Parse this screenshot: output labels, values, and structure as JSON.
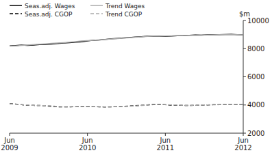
{
  "chart_data": {
    "type": "line",
    "ylabel": "$m",
    "categories": [
      "Jun\n2009",
      null,
      null,
      null,
      null,
      null,
      null,
      null,
      null,
      null,
      null,
      null,
      null,
      "Jun\n2010",
      null,
      null,
      null,
      null,
      null,
      null,
      null,
      null,
      null,
      null,
      null,
      null,
      "Jun\n2011",
      null,
      null,
      null,
      null,
      null,
      null,
      null,
      null,
      null,
      null,
      null,
      null,
      "Jun\n2012"
    ],
    "series": [
      {
        "name": "Seas.adj. Wages",
        "color": "#000000",
        "line_style": "solid",
        "values": [
          8200,
          8220,
          8250,
          8230,
          8260,
          8290,
          8300,
          8330,
          8360,
          8400,
          8430,
          8460,
          8490,
          8550,
          8600,
          8620,
          8650,
          8700,
          8730,
          8760,
          8790,
          8820,
          8850,
          8880,
          8870,
          8890,
          8870,
          8900,
          8920,
          8930,
          8950,
          8970,
          8960,
          8980,
          8990,
          9000,
          9010,
          9020,
          9000,
          8980
        ]
      },
      {
        "name": "Trend Wages",
        "color": "#aaaaaa",
        "line_style": "solid",
        "values": [
          8180,
          8200,
          8230,
          8260,
          8290,
          8310,
          8340,
          8370,
          8400,
          8430,
          8460,
          8500,
          8540,
          8570,
          8600,
          8630,
          8660,
          8690,
          8720,
          8750,
          8780,
          8810,
          8840,
          8870,
          8880,
          8890,
          8900,
          8910,
          8920,
          8930,
          8940,
          8950,
          8960,
          8970,
          8980,
          8990,
          9000,
          9000,
          8990,
          8980
        ]
      },
      {
        "name": "Seas.adj. CGOP",
        "color": "#000000",
        "line_style": "dashed",
        "values": [
          4100,
          4060,
          4020,
          3980,
          3970,
          3960,
          3950,
          3900,
          3870,
          3860,
          3870,
          3880,
          3890,
          3900,
          3880,
          3870,
          3860,
          3870,
          3880,
          3900,
          3920,
          3950,
          3980,
          4000,
          4050,
          4050,
          4020,
          3990,
          3980,
          3970,
          3960,
          3980,
          3990,
          4000,
          4020,
          4030,
          4040,
          4050,
          4040,
          4030
        ]
      },
      {
        "name": "Trend CGOP",
        "color": "#aaaaaa",
        "line_style": "dashed",
        "values": [
          4080,
          4050,
          4020,
          3990,
          3970,
          3960,
          3950,
          3940,
          3890,
          3880,
          3870,
          3875,
          3880,
          3885,
          3880,
          3875,
          3870,
          3875,
          3880,
          3890,
          3910,
          3930,
          3960,
          3990,
          4020,
          4030,
          4020,
          4010,
          3990,
          3980,
          3975,
          3980,
          3990,
          4000,
          4010,
          4020,
          4030,
          4040,
          4035,
          4030
        ]
      }
    ],
    "ylim": [
      2000,
      10000
    ],
    "yticks": [
      2000,
      4000,
      6000,
      8000,
      10000
    ],
    "grid": false,
    "legend": "upper left"
  }
}
